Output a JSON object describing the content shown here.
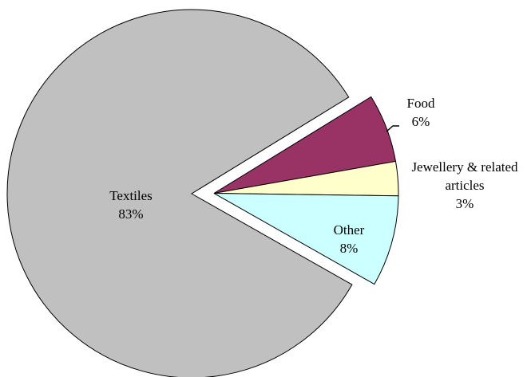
{
  "chart_data": {
    "type": "pie",
    "title": "",
    "slices": [
      {
        "label": "Textiles",
        "pct_label": "83%",
        "value": 83,
        "color": "#C0C0C0"
      },
      {
        "label": "Food",
        "pct_label": "6%",
        "value": 6,
        "color": "#993366"
      },
      {
        "label": "Jewellery & related articles",
        "label_lines": [
          "Jewellery & related",
          "articles"
        ],
        "pct_label": "3%",
        "value": 3,
        "color": "#FFFFCC"
      },
      {
        "label": "Other",
        "pct_label": "8%",
        "value": 8,
        "color": "#CCFFFF"
      }
    ],
    "legend": "none",
    "exploded": [
      "Food",
      "Jewellery & related articles",
      "Other"
    ]
  }
}
